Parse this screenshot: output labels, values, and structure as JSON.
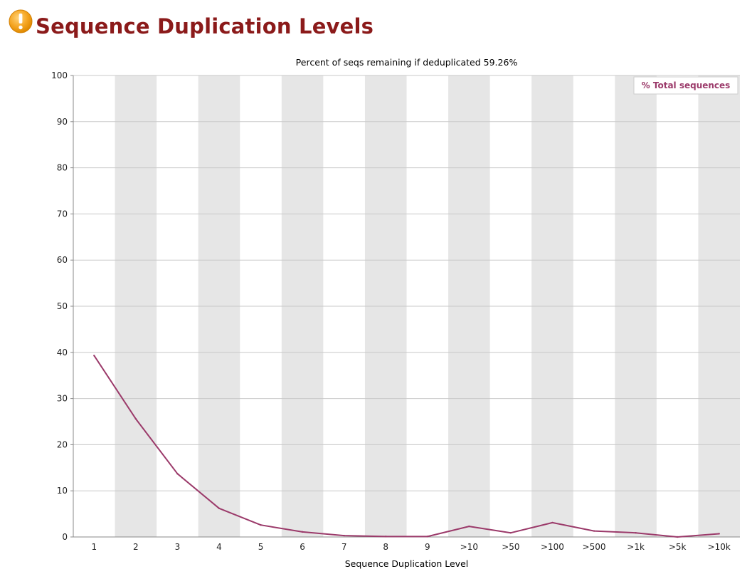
{
  "header": {
    "title": "Sequence Duplication Levels",
    "icon": "warning-icon"
  },
  "colors": {
    "title": "#8b1a1a",
    "series": "#9b3a6a",
    "band": "#e6e6e6",
    "grid": "#c8c8c8",
    "icon": "#f39c12"
  },
  "chart_data": {
    "type": "line",
    "title": "Percent of seqs remaining if deduplicated 59.26%",
    "xlabel": "Sequence Duplication Level",
    "ylabel": "",
    "categories": [
      "1",
      "2",
      "3",
      "4",
      "5",
      "6",
      "7",
      "8",
      "9",
      ">10",
      ">50",
      ">100",
      ">500",
      ">1k",
      ">5k",
      ">10k"
    ],
    "ylim": [
      0,
      100
    ],
    "yticks": [
      0,
      10,
      20,
      30,
      40,
      50,
      60,
      70,
      80,
      90,
      100
    ],
    "grid": true,
    "alternating_bands": true,
    "legend": "top-right",
    "series": [
      {
        "name": "% Total sequences",
        "values": [
          39.3,
          25.6,
          13.7,
          6.2,
          2.6,
          1.1,
          0.3,
          0.1,
          0.1,
          2.3,
          0.9,
          3.1,
          1.3,
          0.9,
          0.0,
          0.7
        ]
      }
    ]
  }
}
